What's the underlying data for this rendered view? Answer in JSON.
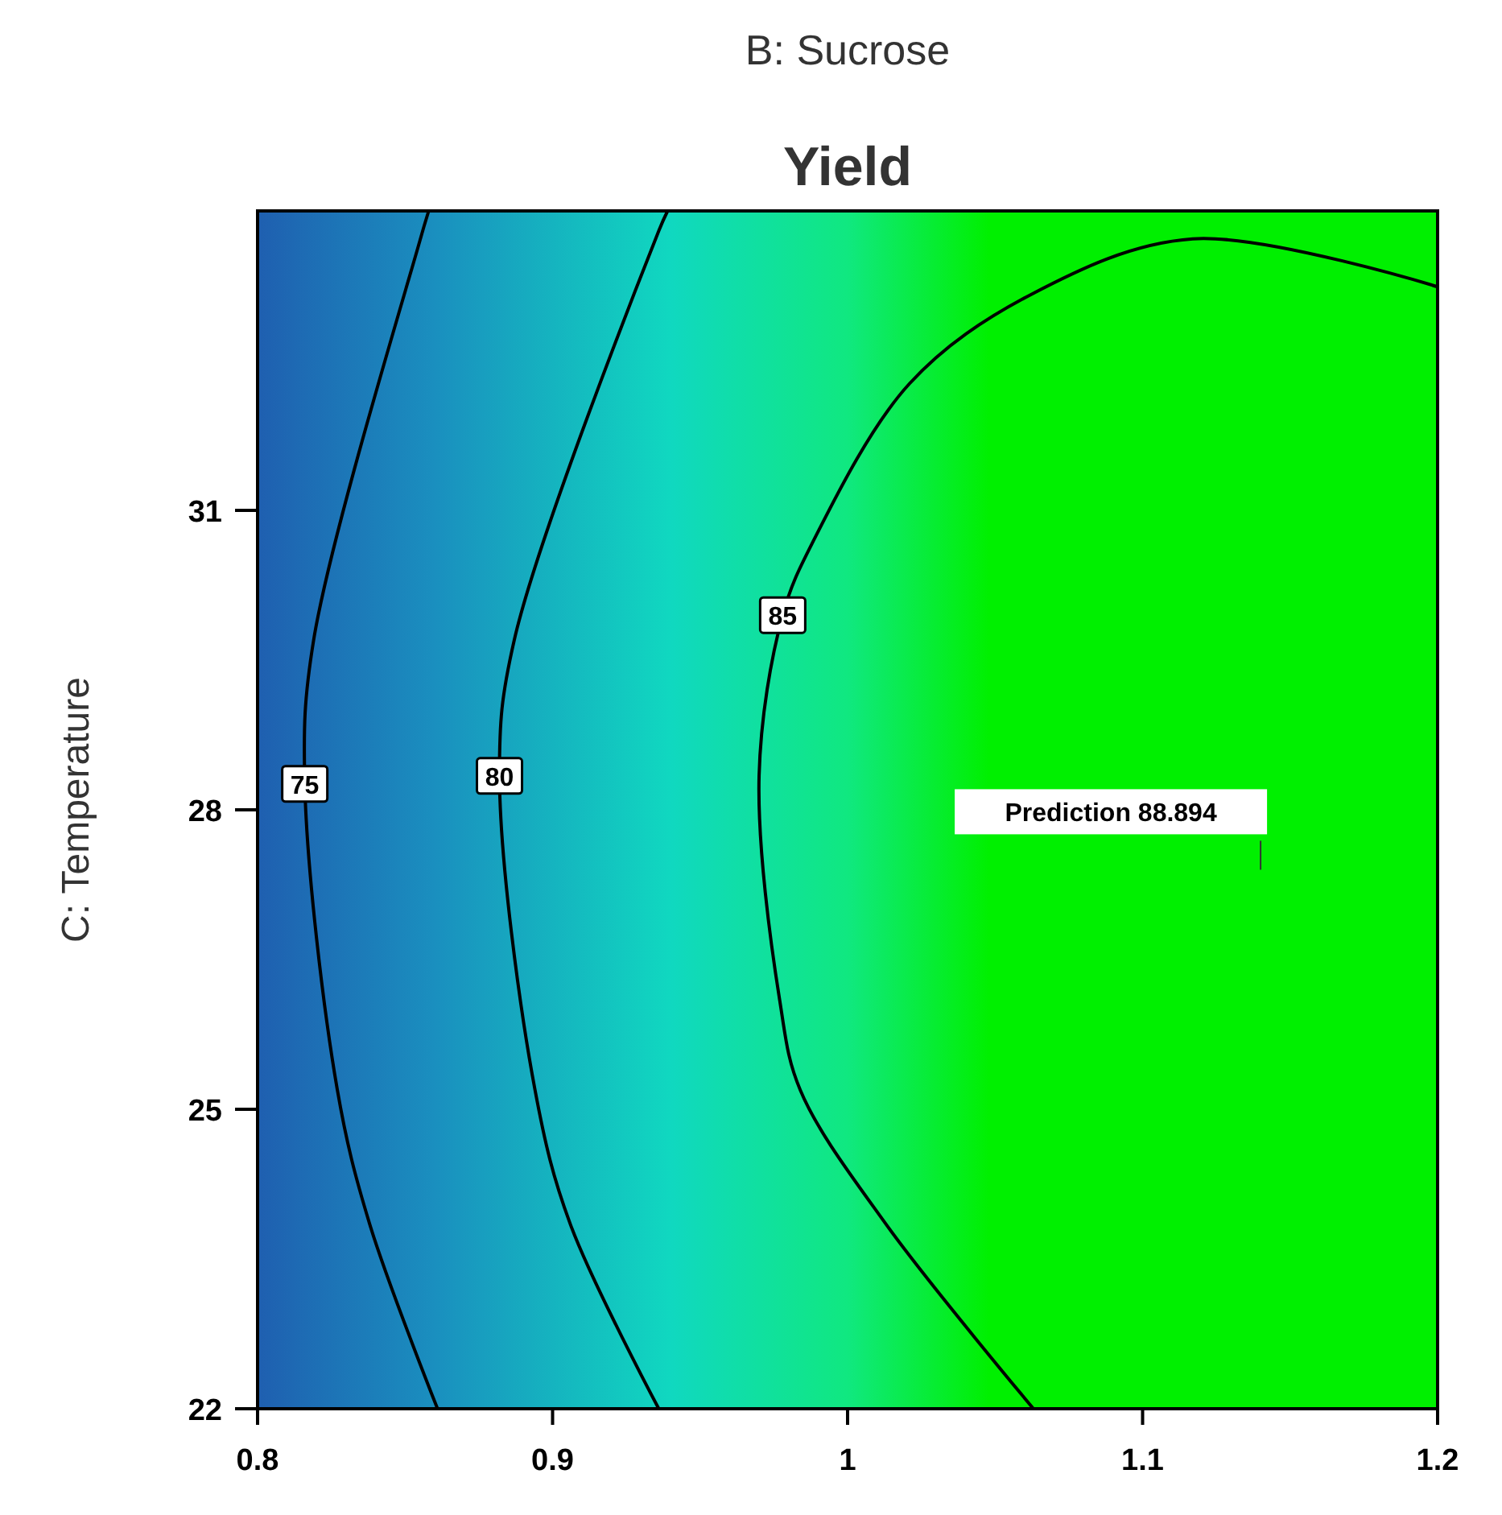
{
  "chart_data": {
    "type": "line",
    "title": "Yield",
    "xlabel": "B: Sucrose",
    "ylabel": "C: Temperature",
    "xlim": [
      0.8,
      1.2
    ],
    "xticks": [
      0.8,
      0.9,
      1,
      1.1,
      1.2
    ],
    "ylim": [
      22,
      34
    ],
    "yticks": [
      22,
      25,
      28,
      31
    ],
    "grid": false,
    "series": [
      {
        "name": "75",
        "color": "#000000",
        "x": [
          0.858,
          0.855,
          0.819,
          0.816,
          0.827,
          0.838,
          0.861
        ],
        "values": [
          34,
          33.7,
          29.7,
          28.26,
          25.2,
          23.85,
          22
        ]
      },
      {
        "name": "80",
        "color": "#000000",
        "x": [
          0.939,
          0.936,
          0.887,
          0.882,
          0.894,
          0.906,
          0.936
        ],
        "values": [
          34,
          33.8,
          29.7,
          28.34,
          25.2,
          23.85,
          22
        ]
      },
      {
        "name": "85",
        "color": "#000000",
        "x": [
          1.2,
          1.117,
          1.062,
          1.021,
          0.988,
          0.978,
          0.97,
          0.977,
          0.984,
          1.013,
          1.063
        ],
        "values": [
          33.24,
          33.72,
          33.16,
          32.27,
          30.67,
          29.95,
          28.34,
          26.09,
          25.19,
          23.85,
          22
        ]
      }
    ],
    "annotations": [
      "Prediction 88.894"
    ]
  }
}
